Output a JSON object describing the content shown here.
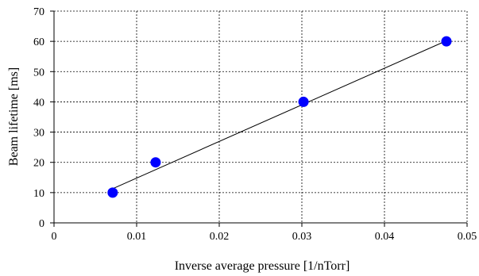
{
  "chart_data": {
    "type": "scatter",
    "title": "",
    "xlabel": "Inverse average pressure [1/nTorr]",
    "ylabel": "Beam lifetime [ms]",
    "xlim": [
      0,
      0.05
    ],
    "ylim": [
      0,
      70
    ],
    "x_ticks": [
      "0",
      "0.01",
      "0.02",
      "0.03",
      "0.04",
      "0.05"
    ],
    "y_ticks": [
      "0",
      "10",
      "20",
      "30",
      "40",
      "50",
      "60",
      "70"
    ],
    "x_tick_values": [
      0,
      0.01,
      0.02,
      0.03,
      0.04,
      0.05
    ],
    "y_tick_values": [
      0,
      10,
      20,
      30,
      40,
      50,
      60,
      70
    ],
    "grid": true,
    "legend": "none",
    "series": [
      {
        "points": [
          {
            "x": 0.0071,
            "y": 10
          },
          {
            "x": 0.0123,
            "y": 20
          },
          {
            "x": 0.0302,
            "y": 40
          },
          {
            "x": 0.0475,
            "y": 60
          }
        ],
        "color": "#0000ff"
      }
    ],
    "trendline": {
      "type": "linear",
      "from": {
        "x": 0.0071,
        "y": 11.3
      },
      "to": {
        "x": 0.0475,
        "y": 60.2
      },
      "color": "#000000"
    }
  }
}
